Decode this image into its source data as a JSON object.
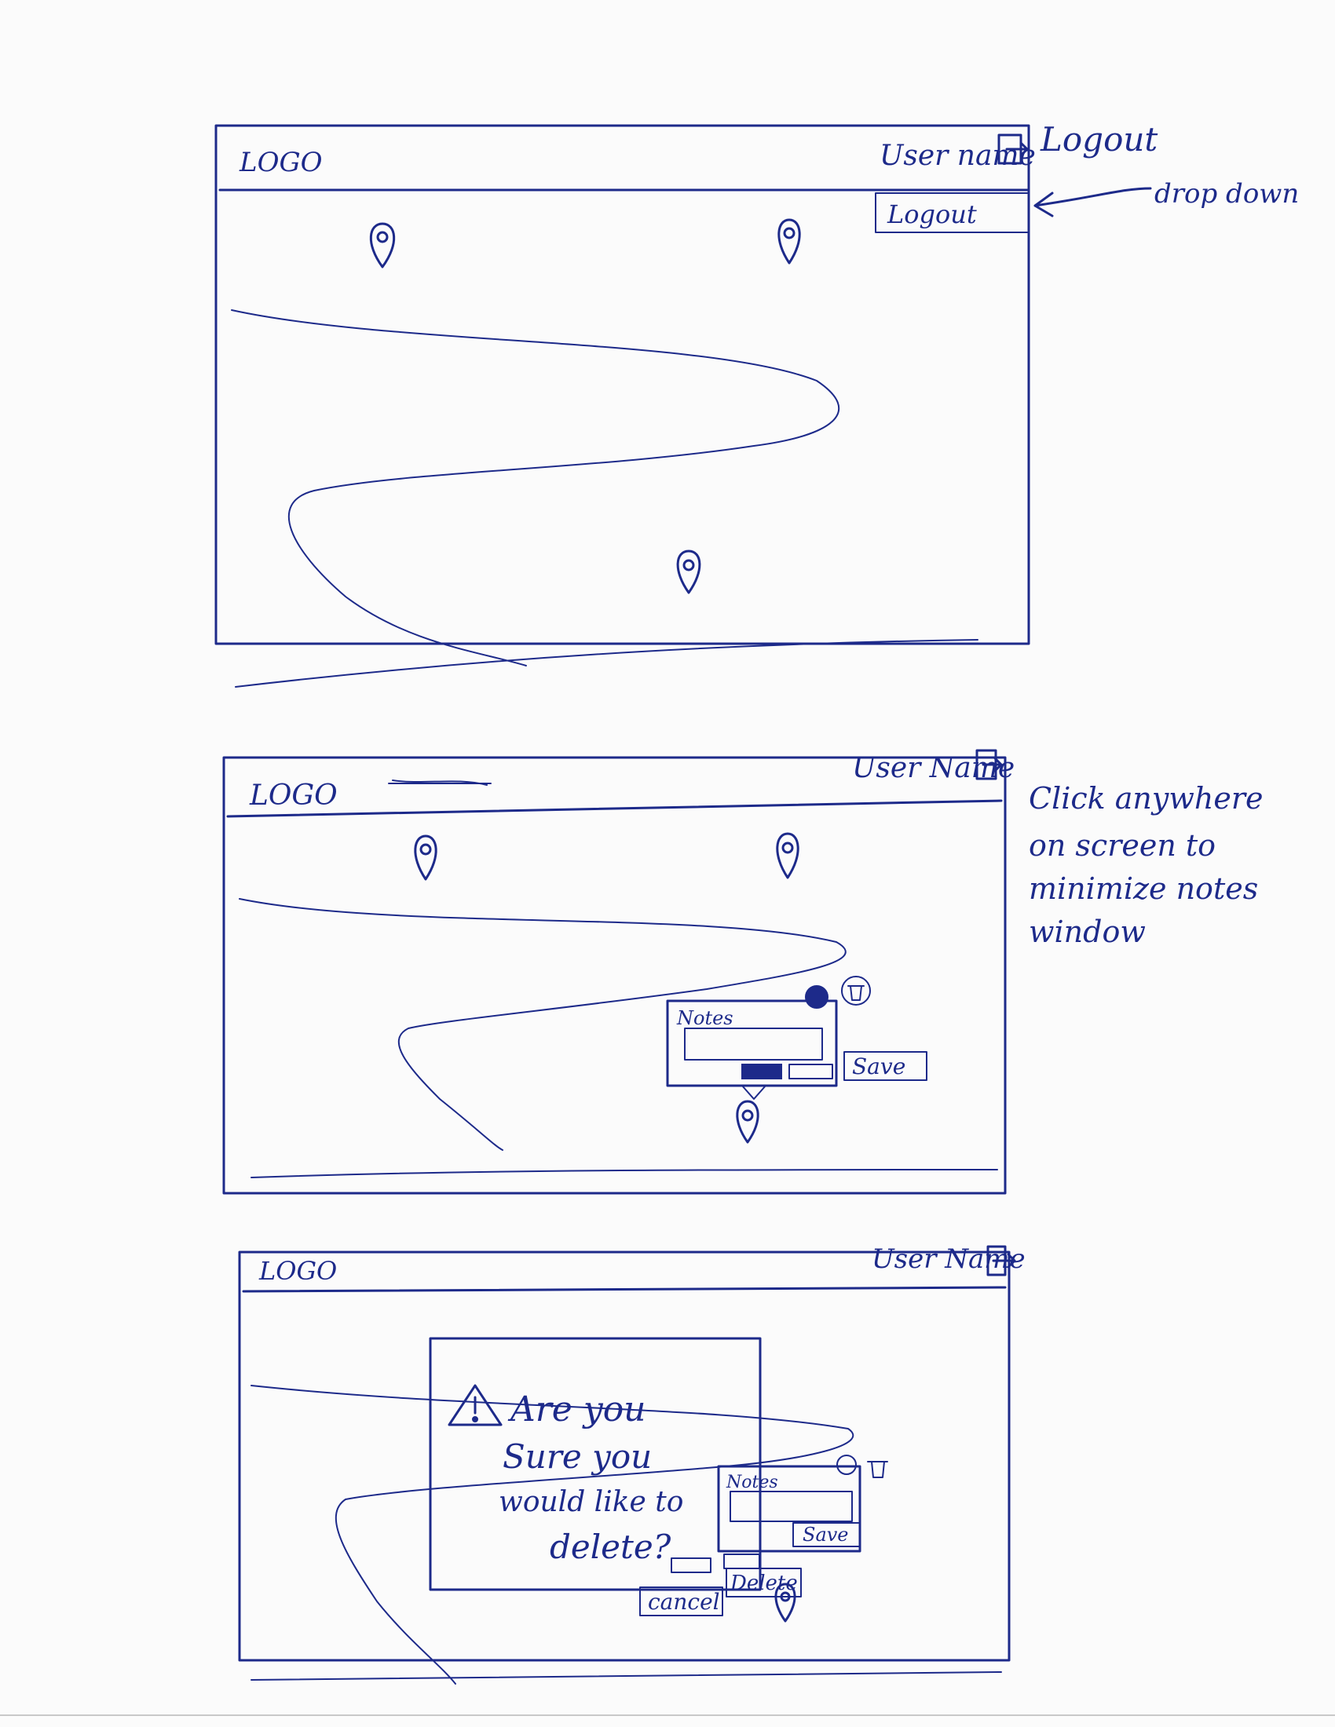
{
  "frames": [
    {
      "header": {
        "logo": "LOGO",
        "user": "User name"
      },
      "dropdown": {
        "label": "Logout"
      },
      "annotations": {
        "logout": "Logout",
        "dropdown": "drop down"
      }
    },
    {
      "header": {
        "logo": "LOGO",
        "user": "User Name"
      },
      "notes_popup": {
        "title": "Notes",
        "save_label": "Save"
      },
      "annotation": [
        "Click anywhere",
        "on screen to",
        "minimize notes",
        "window"
      ]
    },
    {
      "header": {
        "logo": "LOGO",
        "user": "User Name"
      },
      "notes_popup": {
        "title": "Notes",
        "save_label": "Save"
      },
      "confirm_dialog": {
        "lines": [
          "Are you",
          "Sure you",
          "would like to",
          "delete?"
        ],
        "cancel_label": "cancel",
        "delete_label": "Delete"
      }
    }
  ]
}
